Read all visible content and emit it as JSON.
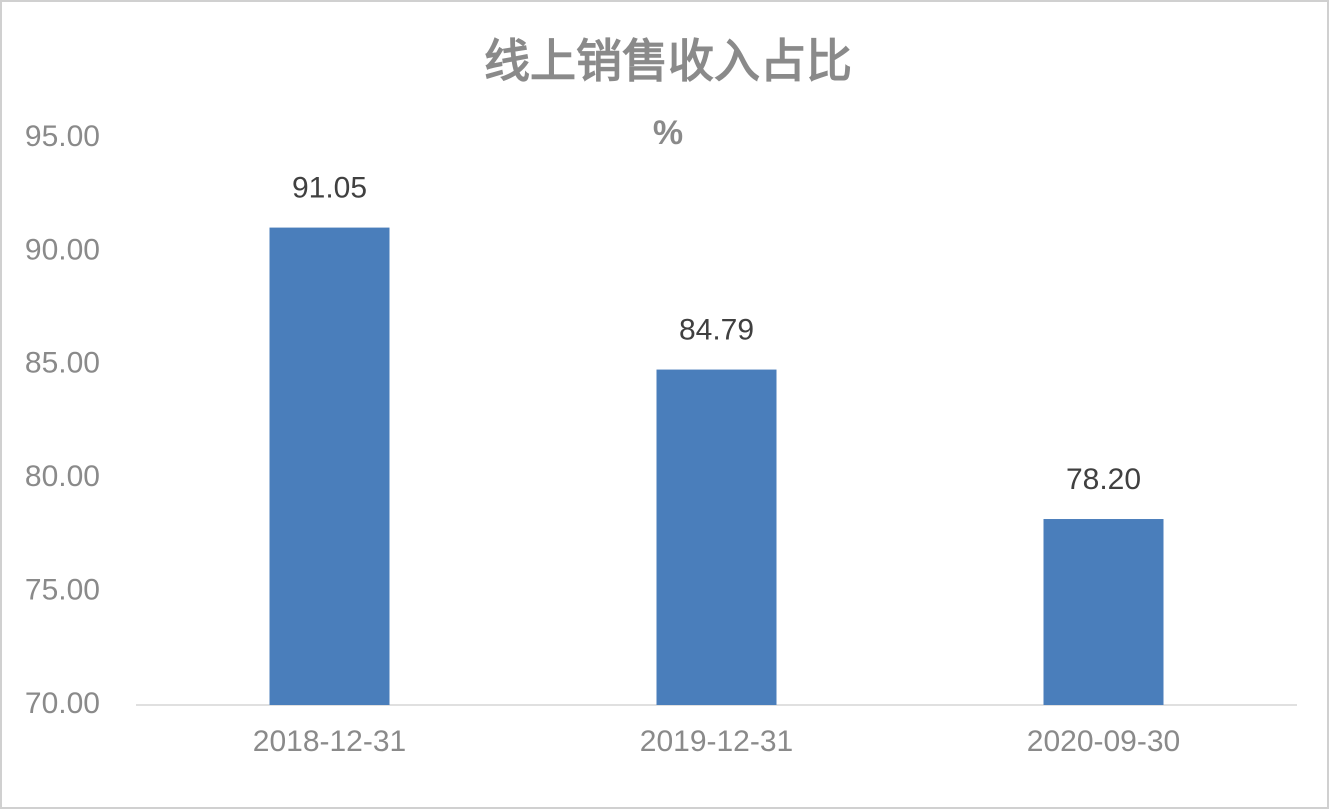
{
  "chart_data": {
    "type": "bar",
    "title": "线上销售收入占比",
    "subtitle": "%",
    "categories": [
      "2018-12-31",
      "2019-12-31",
      "2020-09-30"
    ],
    "values": [
      91.05,
      84.79,
      78.2
    ],
    "value_labels": [
      "91.05",
      "84.79",
      "78.20"
    ],
    "color": "#4a7ebb",
    "ylim": [
      70,
      95
    ],
    "yticks": [
      {
        "value": 70,
        "label": "70.00"
      },
      {
        "value": 75,
        "label": "75.00"
      },
      {
        "value": 80,
        "label": "80.00"
      },
      {
        "value": 85,
        "label": "85.00"
      },
      {
        "value": 90,
        "label": "90.00"
      },
      {
        "value": 95,
        "label": "95.00"
      }
    ],
    "grid": false
  }
}
